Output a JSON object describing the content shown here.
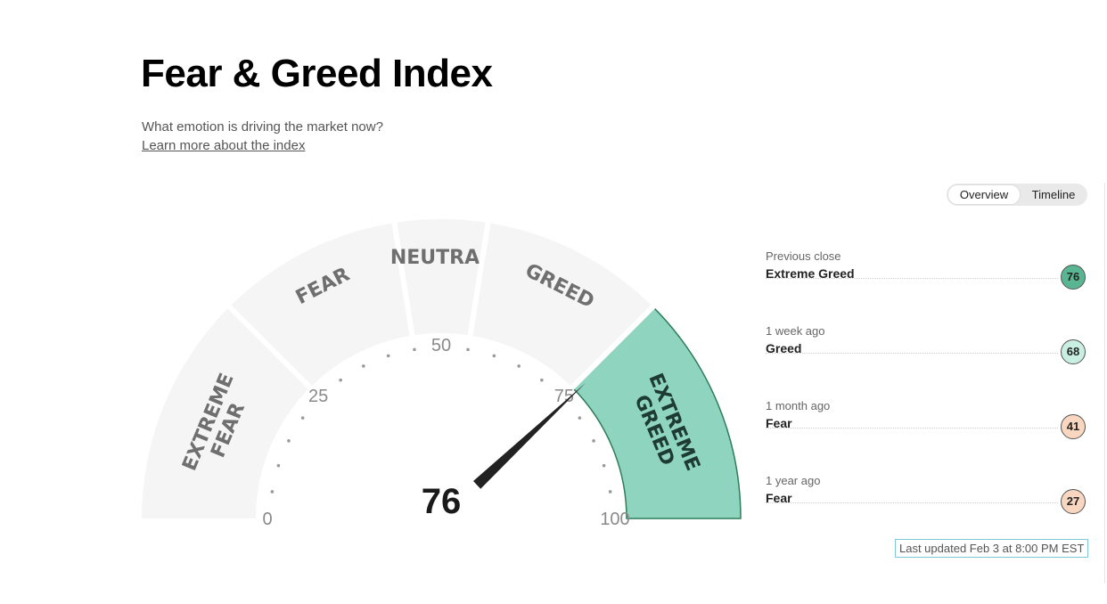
{
  "page": {
    "title": "Fear & Greed Index",
    "subtitle": "What emotion is driving the market now?",
    "learn_link": "Learn more about the index"
  },
  "toggle": {
    "overview": "Overview",
    "timeline": "Timeline",
    "active": "Overview"
  },
  "gauge": {
    "value": 76,
    "value_label": "76",
    "min": 0,
    "max": 100,
    "ticks": [
      "0",
      "25",
      "50",
      "75",
      "100"
    ],
    "segments": [
      {
        "key": "extreme-fear",
        "lines": [
          "EXTREME",
          "FEAR"
        ],
        "from": 0,
        "to": 25,
        "active": false
      },
      {
        "key": "fear",
        "lines": [
          "FEAR"
        ],
        "from": 25,
        "to": 45,
        "active": false
      },
      {
        "key": "neutral",
        "lines": [
          "NEUTRAL"
        ],
        "from": 45,
        "to": 55,
        "active": false
      },
      {
        "key": "greed",
        "lines": [
          "GREED"
        ],
        "from": 55,
        "to": 75,
        "active": false
      },
      {
        "key": "extreme-greed",
        "lines": [
          "EXTREME",
          "GREED"
        ],
        "from": 75,
        "to": 100,
        "active": true
      }
    ],
    "colors": {
      "segment": "#f5f5f5",
      "active": "#8fd4bf",
      "active_stroke": "#2e7d5b",
      "needle": "#222222",
      "tick_text": "#8a8a8a"
    }
  },
  "history": [
    {
      "label": "Previous close",
      "rating": "Extreme Greed",
      "value": "76",
      "color": "#5ab593"
    },
    {
      "label": "1 week ago",
      "rating": "Greed",
      "value": "68",
      "color": "#c9efe3"
    },
    {
      "label": "1 month ago",
      "rating": "Fear",
      "value": "41",
      "color": "#f8d6bf"
    },
    {
      "label": "1 year ago",
      "rating": "Fear",
      "value": "27",
      "color": "#f8d6bf"
    }
  ],
  "updated": "Last updated Feb 3 at 8:00 PM EST"
}
